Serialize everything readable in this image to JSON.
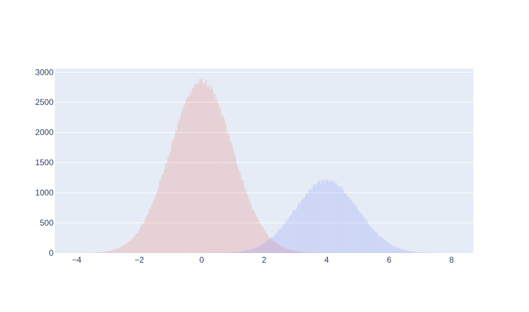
{
  "chart_data": {
    "type": "histogram",
    "title": "",
    "xlabel": "",
    "ylabel": "",
    "xlim": [
      -4.7,
      8.7
    ],
    "ylim": [
      0,
      3060
    ],
    "x_ticks": [
      -4,
      -2,
      0,
      2,
      4,
      6,
      8
    ],
    "x_tick_labels": [
      "−4",
      "−2",
      "0",
      "2",
      "4",
      "6",
      "8"
    ],
    "y_ticks": [
      0,
      500,
      1000,
      1500,
      2000,
      2500,
      3000
    ],
    "y_tick_labels": [
      "0",
      "500",
      "1000",
      "1500",
      "2000",
      "2500",
      "3000"
    ],
    "grid": true,
    "background_color": "#e5ecf6",
    "bin_width": 0.0215,
    "series": [
      {
        "distribution": "normal",
        "mean": 0,
        "std": 1,
        "peak_count": 2850,
        "range": [
          -4.5,
          4.5
        ],
        "color": "#EF553B",
        "opacity": 0.2
      },
      {
        "distribution": "normal",
        "mean": 4,
        "std": 1,
        "peak_count": 1200,
        "range": [
          0.0,
          8.5
        ],
        "color": "#636EFA",
        "opacity": 0.2
      }
    ]
  }
}
